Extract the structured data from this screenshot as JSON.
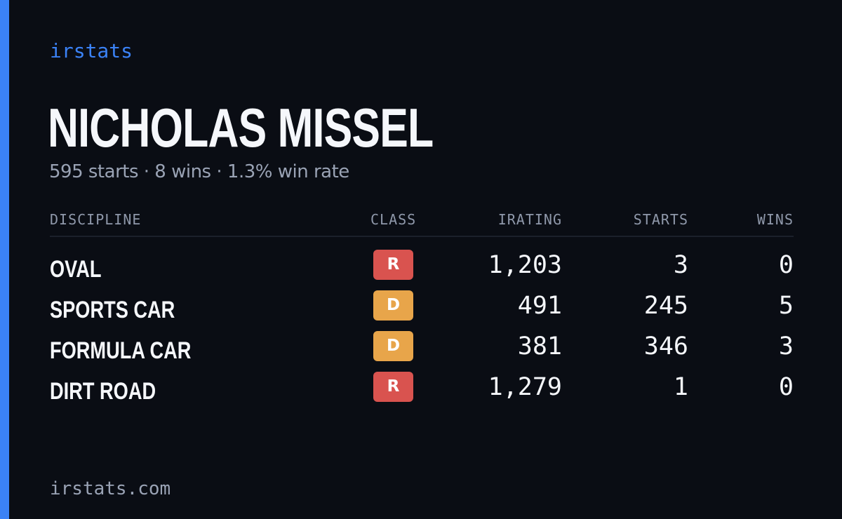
{
  "brand": "irstats",
  "driver": {
    "name": "NICHOLAS MISSEL",
    "summary": "595 starts · 8 wins · 1.3% win rate"
  },
  "table": {
    "headers": {
      "discipline": "DISCIPLINE",
      "class": "CLASS",
      "irating": "IRATING",
      "starts": "STARTS",
      "wins": "WINS"
    },
    "rows": [
      {
        "discipline": "OVAL",
        "class": "R",
        "class_color": "#d9534f",
        "irating": "1,203",
        "starts": "3",
        "wins": "0"
      },
      {
        "discipline": "SPORTS CAR",
        "class": "D",
        "class_color": "#e8a54a",
        "irating": "491",
        "starts": "245",
        "wins": "5"
      },
      {
        "discipline": "FORMULA CAR",
        "class": "D",
        "class_color": "#e8a54a",
        "irating": "381",
        "starts": "346",
        "wins": "3"
      },
      {
        "discipline": "DIRT ROAD",
        "class": "R",
        "class_color": "#d9534f",
        "irating": "1,279",
        "starts": "1",
        "wins": "0"
      }
    ]
  },
  "footer": "irstats.com",
  "colors": {
    "accent": "#3b82f6",
    "background": "#0a0d14",
    "class_r": "#d9534f",
    "class_d": "#e8a54a"
  }
}
